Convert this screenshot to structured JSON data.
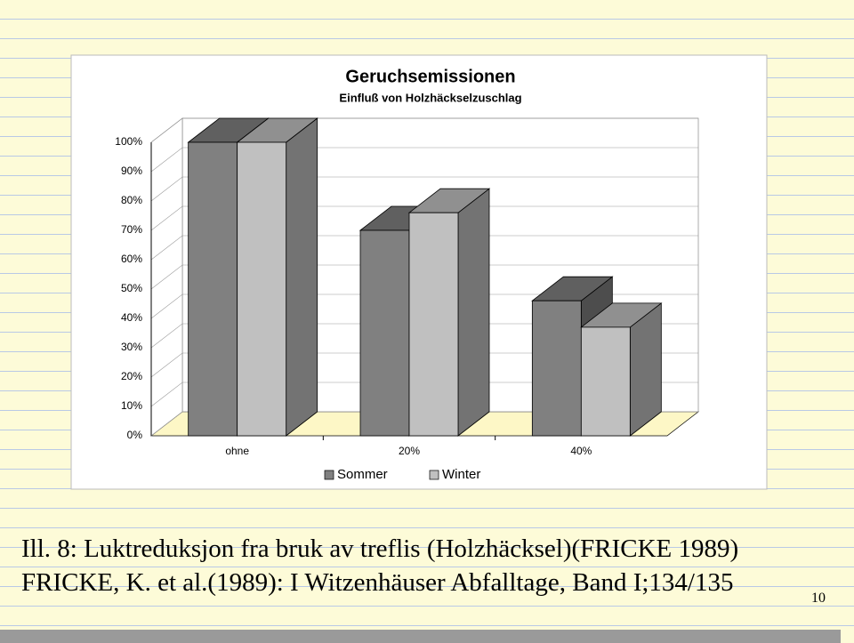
{
  "chart_data": {
    "type": "bar3d",
    "title": "Geruchsemissionen",
    "subtitle": "Einfluß von Holzhäckselzuschlag",
    "categories": [
      "ohne",
      "20%",
      "40%"
    ],
    "series": [
      {
        "name": "Sommer",
        "color": "#808080",
        "values": [
          100,
          70,
          46
        ]
      },
      {
        "name": "Winter",
        "color": "#c0c0c0",
        "values": [
          100,
          76,
          37
        ]
      }
    ],
    "ylim": [
      0,
      100
    ],
    "yticks": [
      {
        "value": 0,
        "label": "0%"
      },
      {
        "value": 10,
        "label": "10%"
      },
      {
        "value": 20,
        "label": "20%"
      },
      {
        "value": 30,
        "label": "30%"
      },
      {
        "value": 40,
        "label": "40%"
      },
      {
        "value": 50,
        "label": "50%"
      },
      {
        "value": 60,
        "label": "60%"
      },
      {
        "value": 70,
        "label": "70%"
      },
      {
        "value": 80,
        "label": "80%"
      },
      {
        "value": 90,
        "label": "90%"
      },
      {
        "value": 100,
        "label": "100%"
      }
    ],
    "grid": true,
    "legend": "bottom"
  },
  "caption": {
    "line1": "Ill. 8: Luktreduksjon fra bruk av treflis (Holzhäcksel)(FRICKE 1989)",
    "line2": "FRICKE, K. et al.(1989): I Witzenhäuser Abfalltage, Band I;134/135",
    "page_number": "10"
  }
}
